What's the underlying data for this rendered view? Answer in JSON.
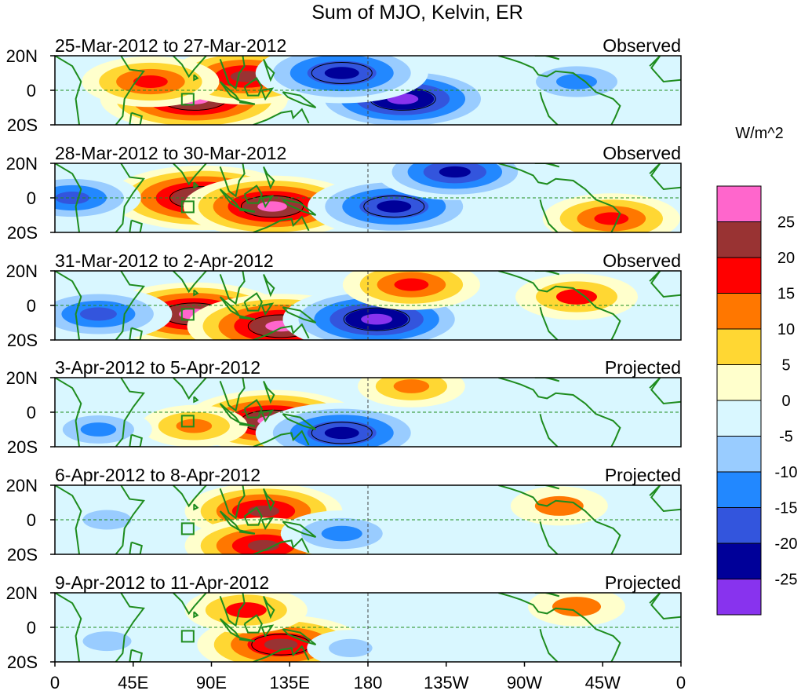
{
  "title": "Sum of MJO, Kelvin, ER",
  "colorbar": {
    "unit": "W/m^2",
    "colors": [
      "#ff66cc",
      "#993333",
      "#ff0000",
      "#ff7700",
      "#ffd733",
      "#ffffcc",
      "#d9f7ff",
      "#99ccff",
      "#2288ff",
      "#3355dd",
      "#000099",
      "#8833ee"
    ],
    "labels": [
      "25",
      "20",
      "15",
      "10",
      "5",
      "0",
      "-5",
      "-10",
      "-15",
      "-20",
      "-25"
    ]
  },
  "lat_labels": [
    "20N",
    "0",
    "20S"
  ],
  "lon_labels": [
    "0",
    "45E",
    "90E",
    "135E",
    "180",
    "135W",
    "90W",
    "45W",
    "0"
  ],
  "land_color": "#1e8c1e",
  "chart_data": [
    {
      "type": "heatmap",
      "date_range": "25-Mar-2012 to 27-Mar-2012",
      "status": "Observed",
      "lon_range": [
        0,
        360
      ],
      "lat_range": [
        -20,
        20
      ],
      "features": [
        {
          "lon": 80,
          "lat": -5,
          "value": 28
        },
        {
          "lon": 110,
          "lat": 8,
          "value": 22
        },
        {
          "lon": 200,
          "lat": -5,
          "value": -28
        },
        {
          "lon": 165,
          "lat": 10,
          "value": -25
        },
        {
          "lon": 300,
          "lat": 5,
          "value": -15
        },
        {
          "lon": 55,
          "lat": 5,
          "value": 18
        }
      ]
    },
    {
      "type": "heatmap",
      "date_range": "28-Mar-2012 to 30-Mar-2012",
      "status": "Observed",
      "lon_range": [
        0,
        360
      ],
      "lat_range": [
        -20,
        20
      ],
      "features": [
        {
          "lon": 85,
          "lat": 0,
          "value": 28
        },
        {
          "lon": 125,
          "lat": -5,
          "value": 26
        },
        {
          "lon": 195,
          "lat": -5,
          "value": -25
        },
        {
          "lon": 230,
          "lat": 15,
          "value": -22
        },
        {
          "lon": 10,
          "lat": 0,
          "value": -18
        },
        {
          "lon": 320,
          "lat": -12,
          "value": 18
        }
      ]
    },
    {
      "type": "heatmap",
      "date_range": "31-Mar-2012 to 2-Apr-2012",
      "status": "Observed",
      "lon_range": [
        0,
        360
      ],
      "lat_range": [
        -20,
        20
      ],
      "features": [
        {
          "lon": 80,
          "lat": -5,
          "value": 27
        },
        {
          "lon": 130,
          "lat": -12,
          "value": 28
        },
        {
          "lon": 185,
          "lat": -8,
          "value": -28
        },
        {
          "lon": 25,
          "lat": -5,
          "value": -20
        },
        {
          "lon": 205,
          "lat": 12,
          "value": 18
        },
        {
          "lon": 300,
          "lat": 5,
          "value": 15
        }
      ]
    },
    {
      "type": "heatmap",
      "date_range": "3-Apr-2012 to 5-Apr-2012",
      "status": "Projected",
      "lon_range": [
        0,
        360
      ],
      "lat_range": [
        -20,
        20
      ],
      "features": [
        {
          "lon": 125,
          "lat": -5,
          "value": 26
        },
        {
          "lon": 80,
          "lat": -8,
          "value": 12
        },
        {
          "lon": 165,
          "lat": -12,
          "value": -25
        },
        {
          "lon": 25,
          "lat": -10,
          "value": -12
        },
        {
          "lon": 205,
          "lat": 15,
          "value": 12
        }
      ]
    },
    {
      "type": "heatmap",
      "date_range": "6-Apr-2012 to 8-Apr-2012",
      "status": "Projected",
      "lon_range": [
        0,
        360
      ],
      "lat_range": [
        -20,
        20
      ],
      "features": [
        {
          "lon": 120,
          "lat": 5,
          "value": 22
        },
        {
          "lon": 120,
          "lat": -15,
          "value": 22
        },
        {
          "lon": 165,
          "lat": -8,
          "value": -15
        },
        {
          "lon": 290,
          "lat": 8,
          "value": 10
        },
        {
          "lon": 30,
          "lat": 0,
          "value": -10
        }
      ]
    },
    {
      "type": "heatmap",
      "date_range": "9-Apr-2012 to 11-Apr-2012",
      "status": "Projected",
      "lon_range": [
        0,
        360
      ],
      "lat_range": [
        -20,
        20
      ],
      "features": [
        {
          "lon": 130,
          "lat": -10,
          "value": 24
        },
        {
          "lon": 110,
          "lat": 10,
          "value": 15
        },
        {
          "lon": 170,
          "lat": -12,
          "value": -8
        },
        {
          "lon": 300,
          "lat": 12,
          "value": 10
        },
        {
          "lon": 30,
          "lat": -8,
          "value": -10
        }
      ]
    }
  ]
}
